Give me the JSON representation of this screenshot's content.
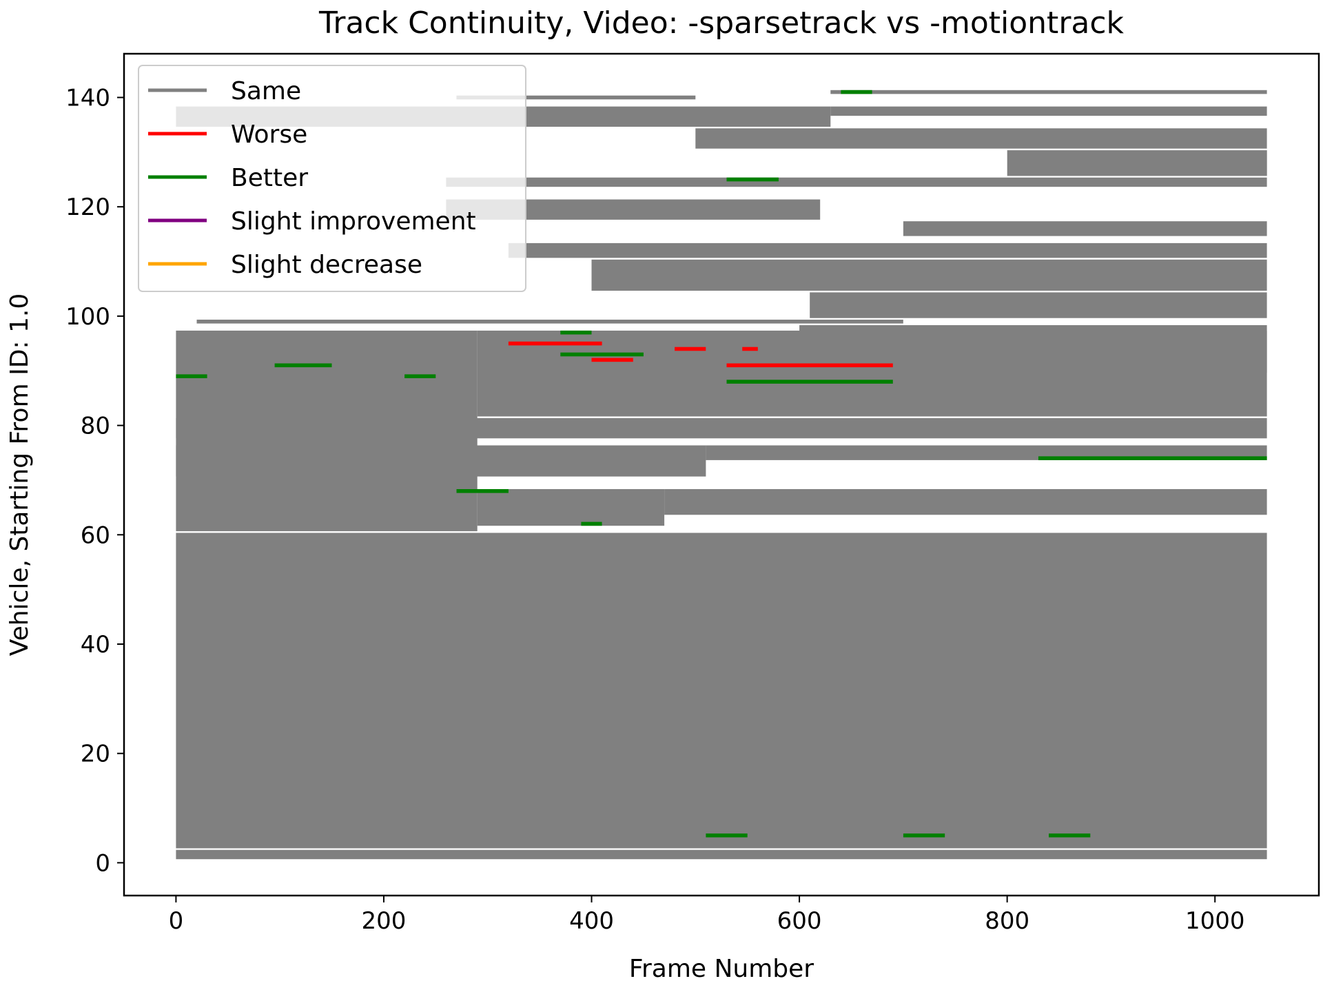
{
  "chart_data": {
    "type": "line",
    "title": "Track Continuity, Video: -sparsetrack vs -motiontrack",
    "xlabel": "Frame Number",
    "ylabel": "Vehicle, Starting From ID: 1.0",
    "xlim": [
      -50,
      1100
    ],
    "ylim": [
      -6,
      148
    ],
    "xticks": [
      0,
      200,
      400,
      600,
      800,
      1000
    ],
    "yticks": [
      0,
      20,
      40,
      60,
      80,
      100,
      120,
      140
    ],
    "grid": false,
    "legend_position": "top-left",
    "series": [
      {
        "name": "Same",
        "color": "#808080"
      },
      {
        "name": "Worse",
        "color": "#ff0000"
      },
      {
        "name": "Better",
        "color": "#008000"
      },
      {
        "name": "Slight improvement",
        "color": "#800080"
      },
      {
        "name": "Slight decrease",
        "color": "#ffa500"
      }
    ],
    "tracks": [
      {
        "vehicles": [
          3,
          60
        ],
        "frames": [
          0,
          1050
        ],
        "status": "Same"
      },
      {
        "vehicles": [
          1,
          2
        ],
        "frames": [
          0,
          1050
        ],
        "status": "Same"
      },
      {
        "vehicles": [
          61,
          97
        ],
        "frames": [
          0,
          290
        ],
        "status": "Same"
      },
      {
        "vehicles": [
          62,
          68
        ],
        "frames": [
          290,
          470
        ],
        "status": "Same"
      },
      {
        "vehicles": [
          64,
          68
        ],
        "frames": [
          470,
          1050
        ],
        "status": "Same"
      },
      {
        "vehicles": [
          71,
          76
        ],
        "frames": [
          0,
          510
        ],
        "status": "Same"
      },
      {
        "vehicles": [
          74,
          76
        ],
        "frames": [
          510,
          1050
        ],
        "status": "Same"
      },
      {
        "vehicles": [
          78,
          81
        ],
        "frames": [
          0,
          1050
        ],
        "status": "Same"
      },
      {
        "vehicles": [
          82,
          97
        ],
        "frames": [
          290,
          1050
        ],
        "status": "Same"
      },
      {
        "vehicles": [
          90,
          98
        ],
        "frames": [
          600,
          1050
        ],
        "status": "Same"
      },
      {
        "vehicles": [
          99,
          99
        ],
        "frames": [
          20,
          700
        ],
        "status": "Same"
      },
      {
        "vehicles": [
          100,
          104
        ],
        "frames": [
          610,
          1050
        ],
        "status": "Same"
      },
      {
        "vehicles": [
          105,
          110
        ],
        "frames": [
          400,
          1050
        ],
        "status": "Same"
      },
      {
        "vehicles": [
          111,
          113
        ],
        "frames": [
          320,
          1050
        ],
        "status": "Same"
      },
      {
        "vehicles": [
          115,
          117
        ],
        "frames": [
          700,
          1050
        ],
        "status": "Same"
      },
      {
        "vehicles": [
          118,
          121
        ],
        "frames": [
          260,
          620
        ],
        "status": "Same"
      },
      {
        "vehicles": [
          124,
          125
        ],
        "frames": [
          260,
          1050
        ],
        "status": "Same"
      },
      {
        "vehicles": [
          126,
          130
        ],
        "frames": [
          800,
          1050
        ],
        "status": "Same"
      },
      {
        "vehicles": [
          131,
          134
        ],
        "frames": [
          500,
          1050
        ],
        "status": "Same"
      },
      {
        "vehicles": [
          135,
          138
        ],
        "frames": [
          0,
          630
        ],
        "status": "Same"
      },
      {
        "vehicles": [
          137,
          138
        ],
        "frames": [
          630,
          1050
        ],
        "status": "Same"
      },
      {
        "vehicles": [
          140,
          140
        ],
        "frames": [
          270,
          500
        ],
        "status": "Same"
      },
      {
        "vehicles": [
          141,
          141
        ],
        "frames": [
          630,
          1050
        ],
        "status": "Same"
      },
      {
        "vehicles": [
          95,
          95
        ],
        "frames": [
          320,
          410
        ],
        "status": "Worse"
      },
      {
        "vehicles": [
          92,
          92
        ],
        "frames": [
          400,
          440
        ],
        "status": "Worse"
      },
      {
        "vehicles": [
          91,
          91
        ],
        "frames": [
          530,
          690
        ],
        "status": "Worse"
      },
      {
        "vehicles": [
          94,
          94
        ],
        "frames": [
          480,
          510
        ],
        "status": "Worse"
      },
      {
        "vehicles": [
          94,
          94
        ],
        "frames": [
          545,
          560
        ],
        "status": "Worse"
      },
      {
        "vehicles": [
          88,
          88
        ],
        "frames": [
          530,
          690
        ],
        "status": "Better"
      },
      {
        "vehicles": [
          125,
          125
        ],
        "frames": [
          530,
          580
        ],
        "status": "Better"
      },
      {
        "vehicles": [
          141,
          141
        ],
        "frames": [
          640,
          670
        ],
        "status": "Better"
      },
      {
        "vehicles": [
          93,
          93
        ],
        "frames": [
          370,
          450
        ],
        "status": "Better"
      },
      {
        "vehicles": [
          91,
          91
        ],
        "frames": [
          95,
          150
        ],
        "status": "Better"
      },
      {
        "vehicles": [
          89,
          89
        ],
        "frames": [
          0,
          30
        ],
        "status": "Better"
      },
      {
        "vehicles": [
          89,
          89
        ],
        "frames": [
          220,
          250
        ],
        "status": "Better"
      },
      {
        "vehicles": [
          68,
          68
        ],
        "frames": [
          270,
          320
        ],
        "status": "Better"
      },
      {
        "vehicles": [
          74,
          74
        ],
        "frames": [
          830,
          1050
        ],
        "status": "Better"
      },
      {
        "vehicles": [
          5,
          5
        ],
        "frames": [
          510,
          550
        ],
        "status": "Better"
      },
      {
        "vehicles": [
          5,
          5
        ],
        "frames": [
          840,
          880
        ],
        "status": "Better"
      },
      {
        "vehicles": [
          5,
          5
        ],
        "frames": [
          700,
          740
        ],
        "status": "Better"
      },
      {
        "vehicles": [
          62,
          62
        ],
        "frames": [
          390,
          410
        ],
        "status": "Better"
      },
      {
        "vehicles": [
          97,
          97
        ],
        "frames": [
          370,
          400
        ],
        "status": "Better"
      }
    ]
  },
  "legend": [
    {
      "label": "Same",
      "color": "#808080"
    },
    {
      "label": "Worse",
      "color": "#ff0000"
    },
    {
      "label": "Better",
      "color": "#008000"
    },
    {
      "label": "Slight improvement",
      "color": "#800080"
    },
    {
      "label": "Slight decrease",
      "color": "#ffa500"
    }
  ]
}
